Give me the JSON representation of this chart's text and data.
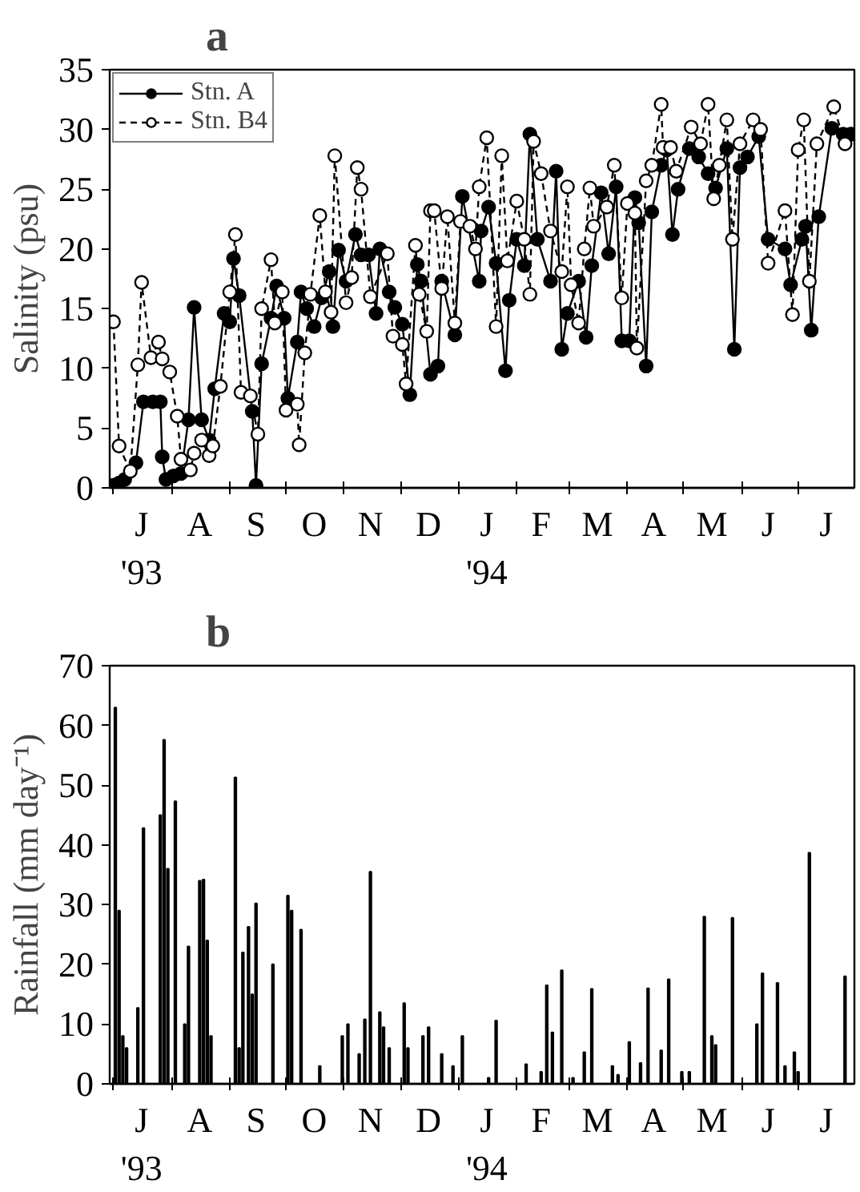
{
  "chart_data": [
    {
      "type": "line",
      "title": "a",
      "ylabel": "Salinity (psu)",
      "xlim": [
        "1993-06-29",
        "1994-07-31"
      ],
      "ylim": [
        0,
        35
      ],
      "yticks": [
        0,
        5,
        10,
        15,
        20,
        25,
        30,
        35
      ],
      "xticks": [
        {
          "value": "1993-07-01",
          "label": null
        },
        {
          "value": "1993-07-16",
          "label": "J\n'93"
        },
        {
          "value": "1993-08-01",
          "label": null
        },
        {
          "value": "1993-08-16",
          "label": "A"
        },
        {
          "value": "1993-09-01",
          "label": null
        },
        {
          "value": "1993-09-15",
          "label": "S"
        },
        {
          "value": "1993-10-01",
          "label": null
        },
        {
          "value": "1993-10-16",
          "label": "O"
        },
        {
          "value": "1993-11-01",
          "label": null
        },
        {
          "value": "1993-11-15",
          "label": "N"
        },
        {
          "value": "1993-12-01",
          "label": null
        },
        {
          "value": "1993-12-16",
          "label": "D"
        },
        {
          "value": "1994-01-01",
          "label": null
        },
        {
          "value": "1994-01-16",
          "label": "J\n'94"
        },
        {
          "value": "1994-02-01",
          "label": null
        },
        {
          "value": "1994-02-14",
          "label": "F"
        },
        {
          "value": "1994-03-01",
          "label": null
        },
        {
          "value": "1994-03-16",
          "label": "M"
        },
        {
          "value": "1994-04-01",
          "label": null
        },
        {
          "value": "1994-04-15",
          "label": "A"
        },
        {
          "value": "1994-05-01",
          "label": null
        },
        {
          "value": "1994-05-16",
          "label": "M"
        },
        {
          "value": "1994-06-01",
          "label": null
        },
        {
          "value": "1994-06-15",
          "label": "J"
        },
        {
          "value": "1994-07-01",
          "label": null
        },
        {
          "value": "1994-07-16",
          "label": "J"
        }
      ],
      "grid": false,
      "legend": "top left",
      "marker": "circle",
      "series": [
        {
          "name": "Stn. A",
          "color": "#000000",
          "line_style": "solid",
          "x": [
            "1993-07-01",
            "1993-07-04",
            "1993-07-07",
            "1993-07-13",
            "1993-07-17",
            "1993-07-22",
            "1993-07-26",
            "1993-07-27",
            "1993-07-29",
            "1993-08-02",
            "1993-08-06",
            "1993-08-10",
            "1993-08-13",
            "1993-08-17",
            "1993-08-21",
            "1993-08-24",
            "1993-08-29",
            "1993-09-01",
            "1993-09-03",
            "1993-09-06",
            "1993-09-13",
            "1993-09-15",
            "1993-09-18",
            "1993-09-23",
            "1993-09-26",
            "1993-09-30",
            "1993-10-02",
            "1993-10-07",
            "1993-10-09",
            "1993-10-12",
            "1993-10-16",
            "1993-10-20",
            "1993-10-24",
            "1993-10-26",
            "1993-10-29",
            "1993-11-02",
            "1993-11-07",
            "1993-11-10",
            "1993-11-14",
            "1993-11-18",
            "1993-11-20",
            "1993-11-25",
            "1993-11-28",
            "1993-12-02",
            "1993-12-06",
            "1993-12-10",
            "1993-12-12",
            "1993-12-17",
            "1993-12-21",
            "1993-12-23",
            "1993-12-30",
            "1994-01-03",
            "1994-01-12",
            "1994-01-13",
            "1994-01-17",
            "1994-01-21",
            "1994-01-26",
            "1994-01-28",
            "1994-02-01",
            "1994-02-05",
            "1994-02-08",
            "1994-02-12",
            "1994-02-19",
            "1994-02-22",
            "1994-02-25",
            "1994-02-28",
            "1994-03-06",
            "1994-03-10",
            "1994-03-13",
            "1994-03-18",
            "1994-03-22",
            "1994-03-26",
            "1994-03-29",
            "1994-04-02",
            "1994-04-05",
            "1994-04-07",
            "1994-04-11",
            "1994-04-14",
            "1994-04-19",
            "1994-04-22",
            "1994-04-25",
            "1994-04-28",
            "1994-05-04",
            "1994-05-09",
            "1994-05-14",
            "1994-05-18",
            "1994-05-24",
            "1994-05-28",
            "1994-05-31",
            "1994-06-04",
            "1994-06-10",
            "1994-06-15",
            "1994-06-24",
            "1994-06-27",
            "1994-07-03",
            "1994-07-05",
            "1994-07-08",
            "1994-07-12",
            "1994-07-19",
            "1994-07-25",
            "1994-07-29"
          ],
          "values": [
            0.2,
            0.4,
            0.7,
            2.1,
            7.2,
            7.2,
            7.2,
            2.6,
            0.7,
            1.0,
            1.2,
            5.7,
            15.1,
            5.7,
            4.0,
            8.3,
            14.6,
            13.9,
            19.2,
            16.1,
            6.4,
            0.2,
            10.4,
            14.2,
            16.9,
            14.2,
            7.5,
            12.2,
            16.4,
            15.0,
            13.5,
            15.9,
            18.1,
            13.5,
            19.9,
            17.3,
            21.2,
            19.5,
            19.5,
            14.6,
            20.0,
            16.4,
            15.1,
            13.7,
            7.8,
            18.7,
            17.3,
            9.5,
            10.2,
            17.3,
            12.8,
            24.4,
            17.3,
            21.5,
            23.5,
            18.8,
            9.8,
            15.7,
            20.8,
            18.6,
            29.6,
            20.8,
            17.3,
            26.5,
            11.6,
            14.6,
            17.3,
            12.6,
            18.6,
            24.7,
            19.6,
            25.2,
            12.3,
            12.3,
            24.3,
            22.2,
            10.2,
            23.1,
            27.0,
            28.3,
            21.2,
            25.0,
            28.4,
            27.7,
            26.3,
            25.1,
            28.4,
            11.6,
            26.8,
            27.7,
            29.4,
            20.8,
            20.0,
            17.0,
            20.8,
            21.9,
            13.2,
            22.7,
            30.1,
            29.6,
            29.6
          ]
        },
        {
          "name": "Stn. B4",
          "color": "#000000",
          "line_style": "dashed",
          "x": [
            "1993-07-01",
            "1993-07-04",
            "1993-07-10",
            "1993-07-14",
            "1993-07-16",
            "1993-07-21",
            "1993-07-25",
            "1993-07-27",
            "1993-07-31",
            "1993-08-04",
            "1993-08-06",
            "1993-08-11",
            "1993-08-13",
            "1993-08-17",
            "1993-08-21",
            "1993-08-23",
            "1993-08-27",
            "1993-09-01",
            "1993-09-04",
            "1993-09-07",
            "1993-09-12",
            "1993-09-16",
            "1993-09-18",
            "1993-09-23",
            "1993-09-25",
            "1993-09-29",
            "1993-10-01",
            "1993-10-07",
            "1993-10-08",
            "1993-10-11",
            "1993-10-14",
            "1993-10-19",
            "1993-10-22",
            "1993-10-25",
            "1993-10-27",
            "1993-11-02",
            "1993-11-05",
            "1993-11-08",
            "1993-11-10",
            "1993-11-15",
            "1993-11-24",
            "1993-11-27",
            "1993-12-02",
            "1993-12-04",
            "1993-12-09",
            "1993-12-11",
            "1993-12-15",
            "1993-12-17",
            "1993-12-19",
            "1993-12-23",
            "1993-12-26",
            "1993-12-30",
            "1994-01-02",
            "1994-01-07",
            "1994-01-10",
            "1994-01-12",
            "1994-01-16",
            "1994-01-21",
            "1994-01-24",
            "1994-01-27",
            "1994-02-01",
            "1994-02-05",
            "1994-02-08",
            "1994-02-10",
            "1994-02-14",
            "1994-02-19",
            "1994-02-25",
            "1994-02-28",
            "1994-03-02",
            "1994-03-06",
            "1994-03-09",
            "1994-03-12",
            "1994-03-14",
            "1994-03-21",
            "1994-03-25",
            "1994-03-29",
            "1994-04-01",
            "1994-04-05",
            "1994-04-06",
            "1994-04-11",
            "1994-04-14",
            "1994-04-19",
            "1994-04-20",
            "1994-04-24",
            "1994-04-27",
            "1994-05-05",
            "1994-05-10",
            "1994-05-14",
            "1994-05-17",
            "1994-05-20",
            "1994-05-24",
            "1994-05-27",
            "1994-05-31",
            "1994-06-07",
            "1994-06-11",
            "1994-06-15",
            "1994-06-24",
            "1994-06-28",
            "1994-07-01",
            "1994-07-04",
            "1994-07-07",
            "1994-07-11",
            "1994-07-20",
            "1994-07-26"
          ],
          "values": [
            13.9,
            3.5,
            1.4,
            10.3,
            17.2,
            10.9,
            12.2,
            10.8,
            9.7,
            6.0,
            2.4,
            1.5,
            2.9,
            4.0,
            2.7,
            3.5,
            8.5,
            16.4,
            21.2,
            8.0,
            7.7,
            4.5,
            15.0,
            19.1,
            13.8,
            16.4,
            6.5,
            7.0,
            3.6,
            11.3,
            16.2,
            22.8,
            16.4,
            14.7,
            27.8,
            15.5,
            17.6,
            26.8,
            25.0,
            16.0,
            19.6,
            12.7,
            12.0,
            8.7,
            20.3,
            16.2,
            13.1,
            23.2,
            23.2,
            16.7,
            22.7,
            13.8,
            22.3,
            21.9,
            20.0,
            25.2,
            29.3,
            13.5,
            27.8,
            19.0,
            24.0,
            20.8,
            16.2,
            29.0,
            26.3,
            21.5,
            18.1,
            25.2,
            17.0,
            13.8,
            20.0,
            25.1,
            21.9,
            23.5,
            27.0,
            15.9,
            23.8,
            23.0,
            11.7,
            25.7,
            27.0,
            32.1,
            28.5,
            28.5,
            26.5,
            30.2,
            28.8,
            32.1,
            24.2,
            27.0,
            30.8,
            20.8,
            28.8,
            30.8,
            30.0,
            18.8,
            23.2,
            14.5,
            28.3,
            30.8,
            17.3,
            28.8,
            31.9,
            28.8
          ]
        }
      ]
    },
    {
      "type": "bar",
      "title": "b",
      "ylabel": "Rainfall (mm day⁻¹)",
      "xlim": [
        "1993-06-29",
        "1994-07-31"
      ],
      "ylim": [
        0,
        70
      ],
      "yticks": [
        0,
        10,
        20,
        30,
        40,
        50,
        60,
        70
      ],
      "xticks": [
        {
          "value": "1993-07-01",
          "label": null
        },
        {
          "value": "1993-07-16",
          "label": "J\n'93"
        },
        {
          "value": "1993-08-01",
          "label": null
        },
        {
          "value": "1993-08-16",
          "label": "A"
        },
        {
          "value": "1993-09-01",
          "label": null
        },
        {
          "value": "1993-09-15",
          "label": "S"
        },
        {
          "value": "1993-10-01",
          "label": null
        },
        {
          "value": "1993-10-16",
          "label": "O"
        },
        {
          "value": "1993-11-01",
          "label": null
        },
        {
          "value": "1993-11-15",
          "label": "N"
        },
        {
          "value": "1993-12-01",
          "label": null
        },
        {
          "value": "1993-12-16",
          "label": "D"
        },
        {
          "value": "1994-01-01",
          "label": null
        },
        {
          "value": "1994-01-16",
          "label": "J\n'94"
        },
        {
          "value": "1994-02-01",
          "label": null
        },
        {
          "value": "1994-02-14",
          "label": "F"
        },
        {
          "value": "1994-03-01",
          "label": null
        },
        {
          "value": "1994-03-16",
          "label": "M"
        },
        {
          "value": "1994-04-01",
          "label": null
        },
        {
          "value": "1994-04-15",
          "label": "A"
        },
        {
          "value": "1994-05-01",
          "label": null
        },
        {
          "value": "1994-05-16",
          "label": "M"
        },
        {
          "value": "1994-06-01",
          "label": null
        },
        {
          "value": "1994-06-15",
          "label": "J"
        },
        {
          "value": "1994-07-01",
          "label": null
        },
        {
          "value": "1994-07-16",
          "label": "J"
        }
      ],
      "grid": false,
      "series": [
        {
          "color": "#000000",
          "x": [
            "1993-07-02",
            "1993-07-04",
            "1993-07-06",
            "1993-07-08",
            "1993-07-14",
            "1993-07-17",
            "1993-07-26",
            "1993-07-28",
            "1993-07-30",
            "1993-08-03",
            "1993-08-08",
            "1993-08-10",
            "1993-08-16",
            "1993-08-18",
            "1993-08-20",
            "1993-08-22",
            "1993-09-04",
            "1993-09-06",
            "1993-09-08",
            "1993-09-11",
            "1993-09-13",
            "1993-09-15",
            "1993-09-24",
            "1993-10-02",
            "1993-10-04",
            "1993-10-09",
            "1993-10-19",
            "1993-10-31",
            "1993-11-03",
            "1993-11-09",
            "1993-11-12",
            "1993-11-15",
            "1993-11-20",
            "1993-11-22",
            "1993-11-25",
            "1993-12-03",
            "1993-12-05",
            "1993-12-13",
            "1993-12-16",
            "1993-12-23",
            "1993-12-29",
            "1994-01-03",
            "1994-01-17",
            "1994-01-21",
            "1994-02-06",
            "1994-02-14",
            "1994-02-17",
            "1994-02-20",
            "1994-02-25",
            "1994-03-03",
            "1994-03-09",
            "1994-03-13",
            "1994-03-24",
            "1994-03-27",
            "1994-04-02",
            "1994-04-08",
            "1994-04-12",
            "1994-04-19",
            "1994-04-23",
            "1994-04-30",
            "1994-05-04",
            "1994-05-12",
            "1994-05-16",
            "1994-05-18",
            "1994-05-27",
            "1994-06-09",
            "1994-06-12",
            "1994-06-20",
            "1994-06-24",
            "1994-06-29",
            "1994-07-01",
            "1994-07-07",
            "1994-07-26"
          ],
          "values": [
            63,
            29,
            8,
            6,
            12.7,
            42.8,
            45,
            57.6,
            36,
            47.3,
            10,
            23,
            34,
            34.2,
            24,
            8,
            51.3,
            6,
            22,
            26.3,
            15,
            30.2,
            20,
            31.5,
            29,
            25.8,
            3,
            8,
            10,
            5,
            10.8,
            35.5,
            12,
            9.5,
            6,
            13.5,
            6,
            8,
            9.5,
            5,
            3,
            8,
            1,
            10.6,
            3.3,
            2,
            16.5,
            8.6,
            19,
            1,
            5.3,
            15.9,
            3,
            1.5,
            7,
            3.5,
            16,
            5.6,
            17.5,
            2,
            2,
            28,
            8,
            6.5,
            27.8,
            10,
            18.5,
            16.9,
            3,
            5.3,
            2,
            38.7,
            18
          ]
        }
      ]
    }
  ]
}
